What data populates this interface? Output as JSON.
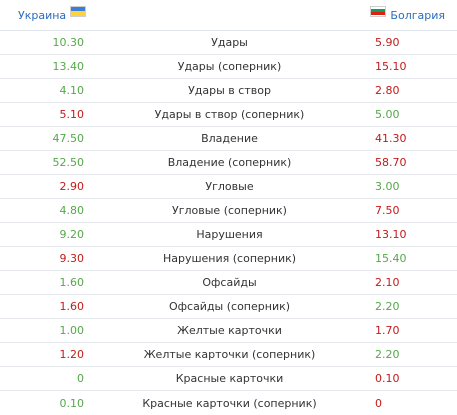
{
  "header": {
    "home_team": "Украина",
    "away_team": "Болгария",
    "home_flag_icon": "ukraine-flag-icon",
    "away_flag_icon": "bulgaria-flag-icon"
  },
  "colors": {
    "link": "#2a6cc0",
    "better": "#55a84b",
    "worse": "#c41a1a"
  },
  "stats": [
    {
      "label": "Удары",
      "home": "10.30",
      "away": "5.90",
      "home_better": true
    },
    {
      "label": "Удары (соперник)",
      "home": "13.40",
      "away": "15.10",
      "home_better": true
    },
    {
      "label": "Удары в створ",
      "home": "4.10",
      "away": "2.80",
      "home_better": true
    },
    {
      "label": "Удары в створ (соперник)",
      "home": "5.10",
      "away": "5.00",
      "home_better": false
    },
    {
      "label": "Владение",
      "home": "47.50",
      "away": "41.30",
      "home_better": true
    },
    {
      "label": "Владение (соперник)",
      "home": "52.50",
      "away": "58.70",
      "home_better": true
    },
    {
      "label": "Угловые",
      "home": "2.90",
      "away": "3.00",
      "home_better": false
    },
    {
      "label": "Угловые (соперник)",
      "home": "4.80",
      "away": "7.50",
      "home_better": true
    },
    {
      "label": "Нарушения",
      "home": "9.20",
      "away": "13.10",
      "home_better": true
    },
    {
      "label": "Нарушения (соперник)",
      "home": "9.30",
      "away": "15.40",
      "home_better": false
    },
    {
      "label": "Офсайды",
      "home": "1.60",
      "away": "2.10",
      "home_better": true
    },
    {
      "label": "Офсайды (соперник)",
      "home": "1.60",
      "away": "2.20",
      "home_better": false
    },
    {
      "label": "Желтые карточки",
      "home": "1.00",
      "away": "1.70",
      "home_better": true
    },
    {
      "label": "Желтые карточки (соперник)",
      "home": "1.20",
      "away": "2.20",
      "home_better": false
    },
    {
      "label": "Красные карточки",
      "home": "0",
      "away": "0.10",
      "home_better": true
    },
    {
      "label": "Красные карточки (соперник)",
      "home": "0.10",
      "away": "0",
      "home_better": true
    }
  ]
}
